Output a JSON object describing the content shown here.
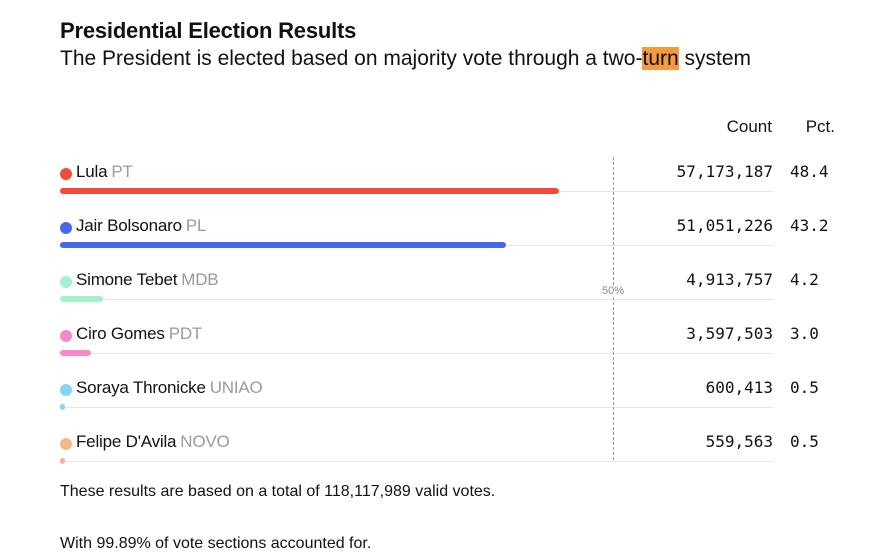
{
  "header": {
    "title": "Presidential Election Results",
    "subtitle_before": "The President is elected based on majority vote through a two-",
    "subtitle_highlight": "turn",
    "subtitle_after": " system"
  },
  "columns": {
    "count": "Count",
    "pct": "Pct."
  },
  "midline_label": "50%",
  "chart_data": {
    "type": "bar",
    "orientation": "horizontal",
    "xlim": [
      0,
      100
    ],
    "reference_line": 50,
    "candidates": [
      {
        "name": "Lula",
        "party": "PT",
        "count": "57,173,187",
        "pct": "48.4",
        "value": 48.4,
        "color": "#f04b3c"
      },
      {
        "name": "Jair Bolsonaro",
        "party": "PL",
        "count": "51,051,226",
        "pct": "43.2",
        "value": 43.2,
        "color": "#4767ea"
      },
      {
        "name": "Simone Tebet",
        "party": "MDB",
        "count": "4,913,757",
        "pct": "4.2",
        "value": 4.2,
        "color": "#a3f0cd"
      },
      {
        "name": "Ciro Gomes",
        "party": "PDT",
        "count": "3,597,503",
        "pct": "3.0",
        "value": 3.0,
        "color": "#f58ac8"
      },
      {
        "name": "Soraya Thronicke",
        "party": "UNIAO",
        "count": "600,413",
        "pct": "0.5",
        "value": 0.5,
        "color": "#86d3f5"
      },
      {
        "name": "Felipe D'Avila",
        "party": "NOVO",
        "count": "559,563",
        "pct": "0.5",
        "value": 0.5,
        "color": "#f7b58c"
      }
    ]
  },
  "notes": {
    "total": "These results are based on a total of 118,117,989 valid votes.",
    "sections": "With 99.89% of vote sections accounted for."
  }
}
